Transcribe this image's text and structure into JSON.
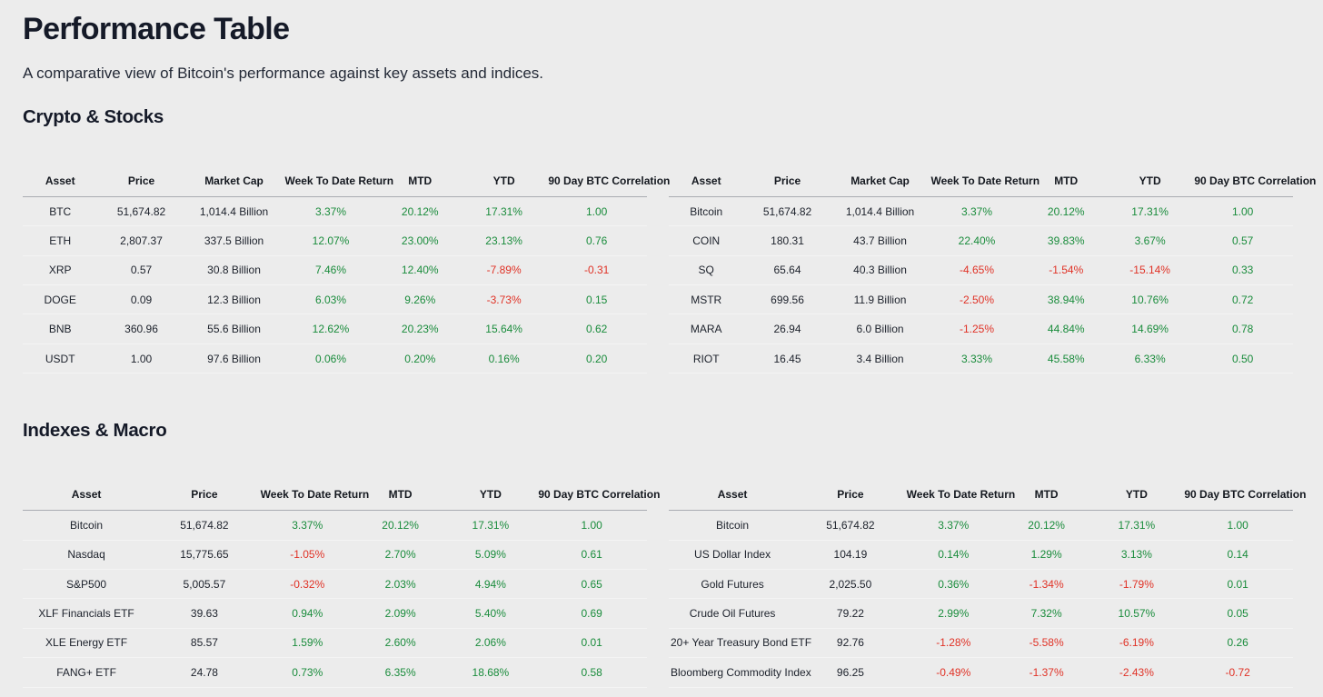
{
  "page": {
    "title": "Performance Table",
    "subtitle": "A comparative view of Bitcoin's performance against key assets and indices."
  },
  "colors": {
    "background": "#ececec",
    "positive": "#1a8c3c",
    "negative": "#e03226"
  },
  "sections": [
    {
      "heading": "Crypto & Stocks",
      "tables": [
        {
          "name": "crypto-table",
          "columns": [
            "Asset",
            "Price",
            "Market Cap",
            "Week To Date Return",
            "MTD",
            "YTD",
            "90 Day BTC Correlation"
          ],
          "rows": [
            [
              "BTC",
              "51,674.82",
              "1,014.4 Billion",
              "3.37%",
              "20.12%",
              "17.31%",
              "1.00"
            ],
            [
              "ETH",
              "2,807.37",
              "337.5 Billion",
              "12.07%",
              "23.00%",
              "23.13%",
              "0.76"
            ],
            [
              "XRP",
              "0.57",
              "30.8 Billion",
              "7.46%",
              "12.40%",
              "-7.89%",
              "-0.31"
            ],
            [
              "DOGE",
              "0.09",
              "12.3 Billion",
              "6.03%",
              "9.26%",
              "-3.73%",
              "0.15"
            ],
            [
              "BNB",
              "360.96",
              "55.6 Billion",
              "12.62%",
              "20.23%",
              "15.64%",
              "0.62"
            ],
            [
              "USDT",
              "1.00",
              "97.6 Billion",
              "0.06%",
              "0.20%",
              "0.16%",
              "0.20"
            ]
          ]
        },
        {
          "name": "stocks-table",
          "columns": [
            "Asset",
            "Price",
            "Market Cap",
            "Week To Date Return",
            "MTD",
            "YTD",
            "90 Day BTC Correlation"
          ],
          "rows": [
            [
              "Bitcoin",
              "51,674.82",
              "1,014.4 Billion",
              "3.37%",
              "20.12%",
              "17.31%",
              "1.00"
            ],
            [
              "COIN",
              "180.31",
              "43.7 Billion",
              "22.40%",
              "39.83%",
              "3.67%",
              "0.57"
            ],
            [
              "SQ",
              "65.64",
              "40.3 Billion",
              "-4.65%",
              "-1.54%",
              "-15.14%",
              "0.33"
            ],
            [
              "MSTR",
              "699.56",
              "11.9 Billion",
              "-2.50%",
              "38.94%",
              "10.76%",
              "0.72"
            ],
            [
              "MARA",
              "26.94",
              "6.0 Billion",
              "-1.25%",
              "44.84%",
              "14.69%",
              "0.78"
            ],
            [
              "RIOT",
              "16.45",
              "3.4 Billion",
              "3.33%",
              "45.58%",
              "6.33%",
              "0.50"
            ]
          ]
        }
      ]
    },
    {
      "heading": "Indexes & Macro",
      "tables": [
        {
          "name": "indexes-table",
          "columns": [
            "Asset",
            "Price",
            "Week To Date Return",
            "MTD",
            "YTD",
            "90 Day BTC Correlation"
          ],
          "rows": [
            [
              "Bitcoin",
              "51,674.82",
              "3.37%",
              "20.12%",
              "17.31%",
              "1.00"
            ],
            [
              "Nasdaq",
              "15,775.65",
              "-1.05%",
              "2.70%",
              "5.09%",
              "0.61"
            ],
            [
              "S&P500",
              "5,005.57",
              "-0.32%",
              "2.03%",
              "4.94%",
              "0.65"
            ],
            [
              "XLF Financials ETF",
              "39.63",
              "0.94%",
              "2.09%",
              "5.40%",
              "0.69"
            ],
            [
              "XLE Energy ETF",
              "85.57",
              "1.59%",
              "2.60%",
              "2.06%",
              "0.01"
            ],
            [
              "FANG+ ETF",
              "24.78",
              "0.73%",
              "6.35%",
              "18.68%",
              "0.58"
            ]
          ]
        },
        {
          "name": "macro-table",
          "columns": [
            "Asset",
            "Price",
            "Week To Date Return",
            "MTD",
            "YTD",
            "90 Day BTC Correlation"
          ],
          "rows": [
            [
              "Bitcoin",
              "51,674.82",
              "3.37%",
              "20.12%",
              "17.31%",
              "1.00"
            ],
            [
              "US Dollar Index",
              "104.19",
              "0.14%",
              "1.29%",
              "3.13%",
              "0.14"
            ],
            [
              "Gold Futures",
              "2,025.50",
              "0.36%",
              "-1.34%",
              "-1.79%",
              "0.01"
            ],
            [
              "Crude Oil Futures",
              "79.22",
              "2.99%",
              "7.32%",
              "10.57%",
              "0.05"
            ],
            [
              "20+ Year Treasury Bond ETF",
              "92.76",
              "-1.28%",
              "-5.58%",
              "-6.19%",
              "0.26"
            ],
            [
              "Bloomberg Commodity Index",
              "96.25",
              "-0.49%",
              "-1.37%",
              "-2.43%",
              "-0.72"
            ]
          ]
        }
      ]
    }
  ]
}
